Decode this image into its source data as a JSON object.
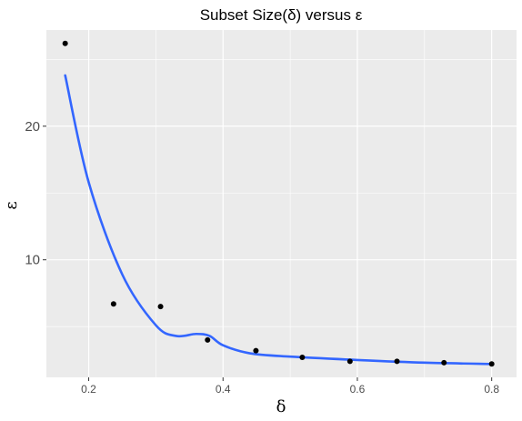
{
  "chart_data": {
    "type": "scatter",
    "title": "Subset Size(δ) versus ε",
    "xlabel": "δ",
    "ylabel": "ε",
    "xlim": [
      0.137,
      0.837
    ],
    "ylim": [
      1.2,
      27.2
    ],
    "x_ticks": [
      0.2,
      0.4,
      0.6,
      0.8
    ],
    "x_tick_labels": [
      "0.2",
      "0.4",
      "0.6",
      "0.8"
    ],
    "y_ticks": [
      10,
      20
    ],
    "y_tick_labels": [
      "10",
      "20"
    ],
    "grid": true,
    "legend": "none",
    "series": [
      {
        "mark": "point",
        "x": [
          0.165,
          0.237,
          0.307,
          0.377,
          0.449,
          0.518,
          0.589,
          0.659,
          0.729,
          0.8
        ],
        "y": [
          26.2,
          6.7,
          6.5,
          4.0,
          3.2,
          2.7,
          2.4,
          2.4,
          2.3,
          2.2
        ]
      },
      {
        "mark": "line",
        "x": [
          0.165,
          0.2,
          0.25,
          0.3,
          0.33,
          0.36,
          0.38,
          0.4,
          0.44,
          0.5,
          0.6,
          0.7,
          0.8
        ],
        "y": [
          23.8,
          15.8,
          8.9,
          5.1,
          4.3,
          4.45,
          4.3,
          3.6,
          3.0,
          2.75,
          2.5,
          2.3,
          2.2
        ]
      }
    ],
    "colors": {
      "panel": "#ebebeb",
      "grid_major": "#ffffff",
      "points": "#000000",
      "line": "#3366ff"
    }
  }
}
